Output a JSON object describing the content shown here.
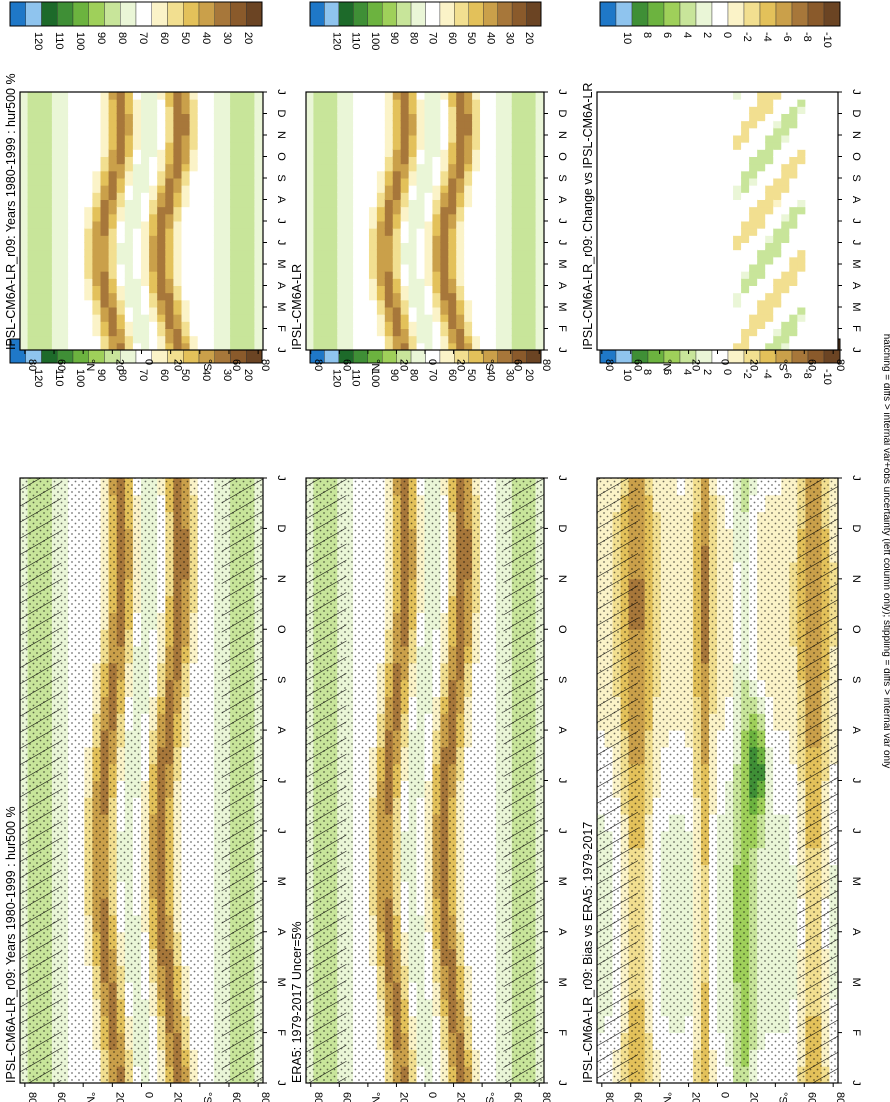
{
  "footer_note": "hatching = diffs > internal var+obs uncertainty (left column only); stippling = diffs > internal var only",
  "colors": {
    "abs_scale": [
      "#1f78c8",
      "#8fc4ee",
      "#1d6a2a",
      "#3f8f36",
      "#6cb33f",
      "#9fd05a",
      "#c8e59a",
      "#eaf6d7",
      "#ffffff",
      "#fbf3c8",
      "#f2df90",
      "#e3c15a",
      "#caa04a",
      "#a7773a",
      "#8a5a2b",
      "#6b4423"
    ],
    "diff_scale": [
      "#1f78c8",
      "#8fc4ee",
      "#3f8f36",
      "#6cb33f",
      "#9fd05a",
      "#c8e59a",
      "#eaf6d7",
      "#ffffff",
      "#fbf3c8",
      "#f2df90",
      "#e3c15a",
      "#caa04a",
      "#a7773a",
      "#8a5a2b",
      "#6b4423"
    ],
    "background": "#f4f7fc"
  },
  "chart_data": [
    {
      "panel": "top-left",
      "type": "heatmap",
      "title": "IPSL-CM6A-LR_r09: Years 1980-1999 : hur500 %",
      "x_ticks": [
        "J",
        "F",
        "M",
        "A",
        "M",
        "J",
        "J",
        "A",
        "S",
        "O",
        "N",
        "D",
        "J"
      ],
      "y_ticks": [
        "80",
        "60",
        "°N",
        "20",
        "0",
        "20",
        "°S",
        "60",
        "80"
      ],
      "hatching": true,
      "stippling": true,
      "colorbar_labels": [
        "120",
        "110",
        "100",
        "90",
        "80",
        "70",
        "60",
        "50",
        "40",
        "30",
        "20"
      ],
      "colorbar_range": [
        10,
        130
      ]
    },
    {
      "panel": "top-right",
      "type": "heatmap",
      "title": "IPSL-CM6A-LR_r09: Years 1980-1999 : hur500 %",
      "x_ticks": [
        "J",
        "F",
        "M",
        "A",
        "M",
        "J",
        "J",
        "A",
        "S",
        "O",
        "N",
        "D",
        "J"
      ],
      "y_ticks": [
        "80",
        "60",
        "°N",
        "20",
        "0",
        "20",
        "°S",
        "60",
        "80"
      ],
      "hatching": false,
      "stippling": false,
      "colorbar_labels": [
        "120",
        "110",
        "100",
        "90",
        "80",
        "70",
        "60",
        "50",
        "40",
        "30",
        "20"
      ],
      "colorbar_range": [
        10,
        130
      ]
    },
    {
      "panel": "middle-left",
      "type": "heatmap",
      "title": "ERA5: 1979-2017 Uncer=5%",
      "x_ticks": [
        "J",
        "F",
        "M",
        "A",
        "M",
        "J",
        "J",
        "A",
        "S",
        "O",
        "N",
        "D",
        "J"
      ],
      "y_ticks": [
        "80",
        "60",
        "°N",
        "20",
        "0",
        "20",
        "°S",
        "60",
        "80"
      ],
      "hatching": true,
      "stippling": true,
      "colorbar_labels": [
        "120",
        "110",
        "100",
        "90",
        "80",
        "70",
        "60",
        "50",
        "40",
        "30",
        "20"
      ],
      "colorbar_range": [
        10,
        130
      ]
    },
    {
      "panel": "middle-right",
      "type": "heatmap",
      "title": "IPSL-CM6A-LR",
      "x_ticks": [
        "J",
        "F",
        "M",
        "A",
        "M",
        "J",
        "J",
        "A",
        "S",
        "O",
        "N",
        "D",
        "J"
      ],
      "y_ticks": [
        "80",
        "60",
        "°N",
        "20",
        "0",
        "20",
        "°S",
        "60",
        "80"
      ],
      "hatching": false,
      "stippling": false,
      "colorbar_labels": [
        "120",
        "110",
        "100",
        "90",
        "80",
        "70",
        "60",
        "50",
        "40",
        "30",
        "20"
      ],
      "colorbar_range": [
        10,
        130
      ]
    },
    {
      "panel": "bottom-left",
      "type": "heatmap",
      "title": "IPSL-CM6A-LR_r09: Bias vs ERA5: 1979-2017",
      "x_ticks": [
        "J",
        "F",
        "M",
        "A",
        "M",
        "J",
        "J",
        "A",
        "S",
        "O",
        "N",
        "D",
        "J"
      ],
      "y_ticks": [
        "80",
        "60",
        "°N",
        "20",
        "0",
        "20",
        "°S",
        "60",
        "80"
      ],
      "hatching": true,
      "stippling": true,
      "colorbar_labels": [
        "10",
        "8",
        "6",
        "4",
        "2",
        "0",
        "-2",
        "-4",
        "-6",
        "-8",
        "-10"
      ],
      "colorbar_range": [
        -12,
        12
      ]
    },
    {
      "panel": "bottom-right",
      "type": "heatmap",
      "title": "IPSL-CM6A-LR_r09: Change vs IPSL-CM6A-LR",
      "x_ticks": [
        "J",
        "F",
        "M",
        "A",
        "M",
        "J",
        "J",
        "A",
        "S",
        "O",
        "N",
        "D",
        "J"
      ],
      "y_ticks": [
        "80",
        "60",
        "°N",
        "20",
        "0",
        "20",
        "°S",
        "60",
        "80"
      ],
      "hatching": false,
      "stippling": false,
      "colorbar_labels": [
        "10",
        "8",
        "6",
        "4",
        "2",
        "0",
        "-2",
        "-4",
        "-6",
        "-8",
        "-10"
      ],
      "colorbar_range": [
        -12,
        12
      ]
    }
  ]
}
